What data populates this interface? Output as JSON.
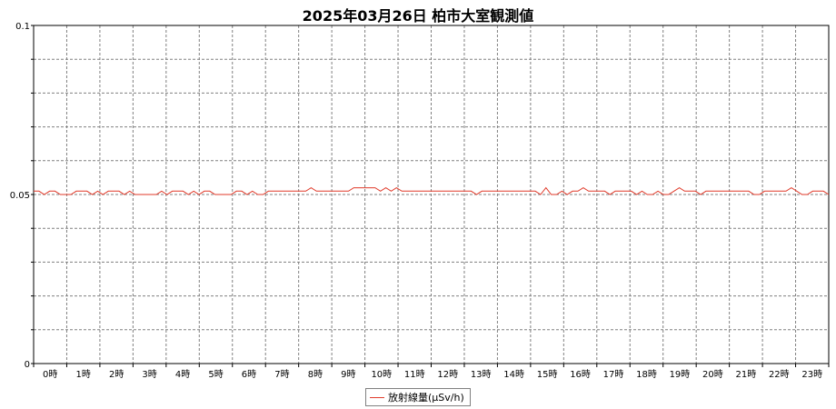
{
  "chart_data": {
    "type": "line",
    "title": "2025年03月26日 柏市大室観測値",
    "xlabel": "",
    "ylabel": "",
    "ylim": [
      0,
      0.1
    ],
    "y_ticks": [
      "0",
      "0.05",
      "0.1"
    ],
    "x_ticks": [
      "0時",
      "1時",
      "2時",
      "3時",
      "4時",
      "5時",
      "6時",
      "7時",
      "8時",
      "9時",
      "10時",
      "11時",
      "12時",
      "13時",
      "14時",
      "15時",
      "16時",
      "17時",
      "18時",
      "19時",
      "20時",
      "21時",
      "22時",
      "23時"
    ],
    "grid": true,
    "legend_position": "bottom-center",
    "series_color": "#e03a2a",
    "series": [
      {
        "name": "放射線量(μSv/h)",
        "values": [
          0.051,
          0.051,
          0.05,
          0.051,
          0.051,
          0.05,
          0.05,
          0.05,
          0.051,
          0.051,
          0.051,
          0.05,
          0.051,
          0.05,
          0.051,
          0.051,
          0.051,
          0.05,
          0.051,
          0.05,
          0.05,
          0.05,
          0.05,
          0.05,
          0.051,
          0.05,
          0.051,
          0.051,
          0.051,
          0.05,
          0.051,
          0.05,
          0.051,
          0.051,
          0.05,
          0.05,
          0.05,
          0.05,
          0.051,
          0.051,
          0.05,
          0.051,
          0.05,
          0.05,
          0.051,
          0.051,
          0.051,
          0.051,
          0.051,
          0.051,
          0.051,
          0.051,
          0.052,
          0.051,
          0.051,
          0.051,
          0.051,
          0.051,
          0.051,
          0.051,
          0.052,
          0.052,
          0.052,
          0.052,
          0.052,
          0.051,
          0.052,
          0.051,
          0.052,
          0.051,
          0.051,
          0.051,
          0.051,
          0.051,
          0.051,
          0.051,
          0.051,
          0.051,
          0.051,
          0.051,
          0.051,
          0.051,
          0.051,
          0.05,
          0.051,
          0.051,
          0.051,
          0.051,
          0.051,
          0.051,
          0.051,
          0.051,
          0.051,
          0.051,
          0.051,
          0.05,
          0.052,
          0.05,
          0.05,
          0.051,
          0.05,
          0.051,
          0.051,
          0.052,
          0.051,
          0.051,
          0.051,
          0.051,
          0.05,
          0.051,
          0.051,
          0.051,
          0.051,
          0.05,
          0.051,
          0.05,
          0.05,
          0.051,
          0.05,
          0.05,
          0.051,
          0.052,
          0.051,
          0.051,
          0.051,
          0.05,
          0.051,
          0.051,
          0.051,
          0.051,
          0.051,
          0.051,
          0.051,
          0.051,
          0.051,
          0.05,
          0.05,
          0.051,
          0.051,
          0.051,
          0.051,
          0.051,
          0.052,
          0.051,
          0.05,
          0.05,
          0.051,
          0.051,
          0.051,
          0.05
        ]
      }
    ]
  }
}
